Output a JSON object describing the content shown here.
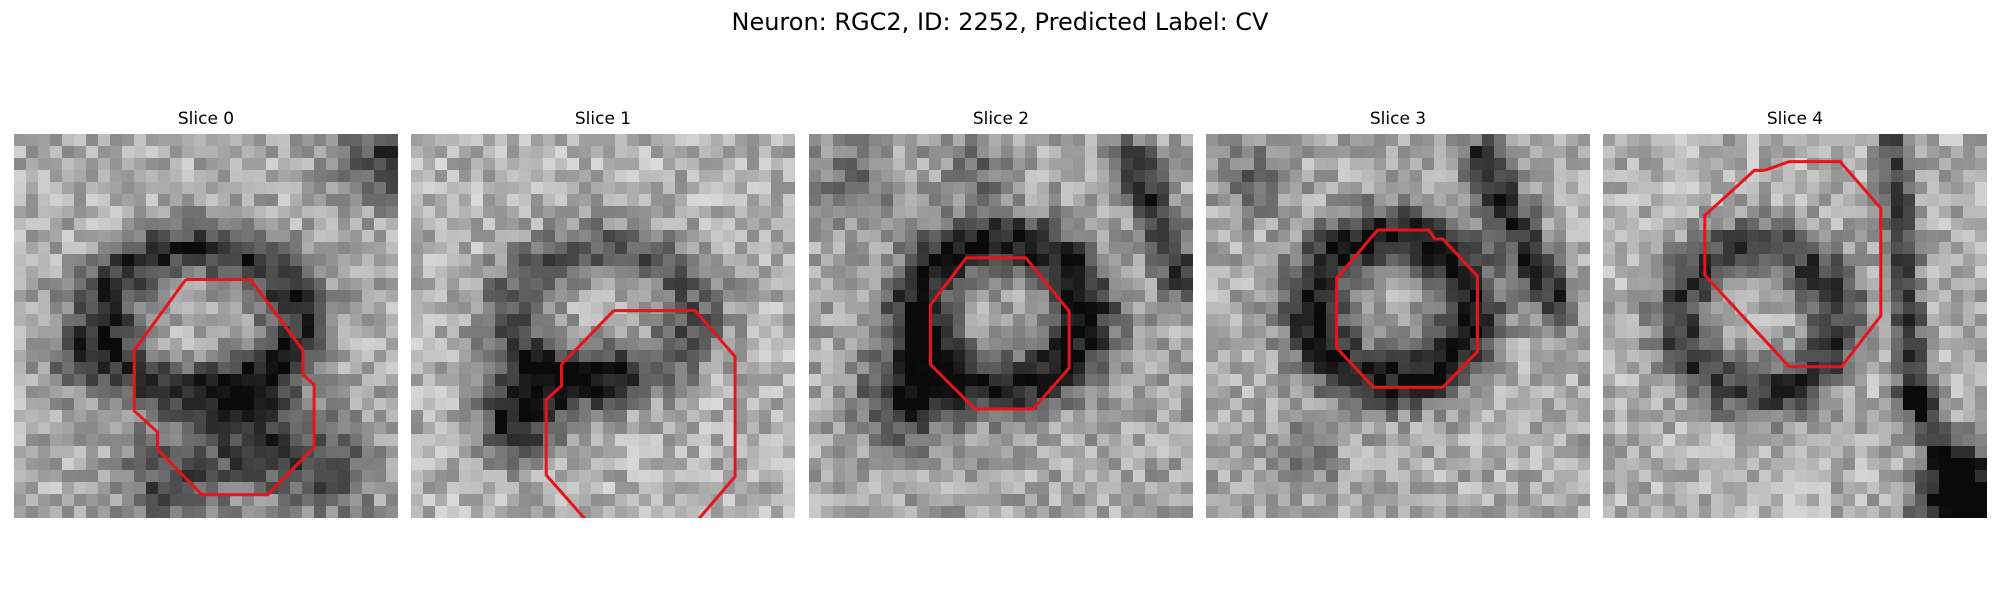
{
  "figure": {
    "title": "Neuron: RGC2, ID: 2252, Predicted Label: CV"
  },
  "panels": [
    {
      "label": "Slice 0"
    },
    {
      "label": "Slice 1"
    },
    {
      "label": "Slice 2"
    },
    {
      "label": "Slice 3"
    },
    {
      "label": "Slice 4"
    }
  ],
  "colors": {
    "contour": "#e8141b",
    "background": "#ffffff"
  }
}
